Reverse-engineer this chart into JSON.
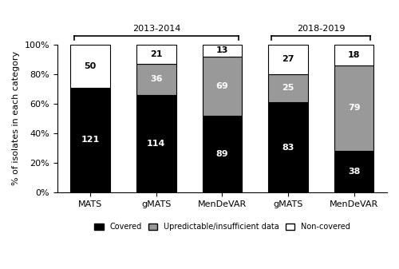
{
  "categories": [
    "MATS",
    "gMATS",
    "MenDeVAR",
    "gMATS",
    "MenDeVAR"
  ],
  "groups": [
    "2013-2014",
    "2018-2019"
  ],
  "covered_pct": [
    71,
    66,
    52,
    61,
    28
  ],
  "unpredictable_pct": [
    0,
    21,
    40,
    19,
    58
  ],
  "noncovered_pct": [
    29,
    13,
    8,
    20,
    14
  ],
  "covered_labels": [
    "121",
    "114",
    "89",
    "83",
    "38"
  ],
  "unpredictable_labels": [
    "",
    "36",
    "69",
    "25",
    "79"
  ],
  "noncovered_labels": [
    "50",
    "21",
    "13",
    "27",
    "18"
  ],
  "covered_color": "#000000",
  "unpredictable_color": "#999999",
  "noncovered_color": "#ffffff",
  "ylabel": "% of isolates in each category",
  "yticks": [
    0,
    20,
    40,
    60,
    80,
    100
  ],
  "ytick_labels": [
    "0%",
    "20%",
    "40%",
    "60%",
    "80%",
    "100%"
  ],
  "legend_labels": [
    "Covered",
    "Upredictable/insufficient data",
    "Non-covered"
  ],
  "bar_width": 0.6,
  "bar_edge_color": "#000000"
}
